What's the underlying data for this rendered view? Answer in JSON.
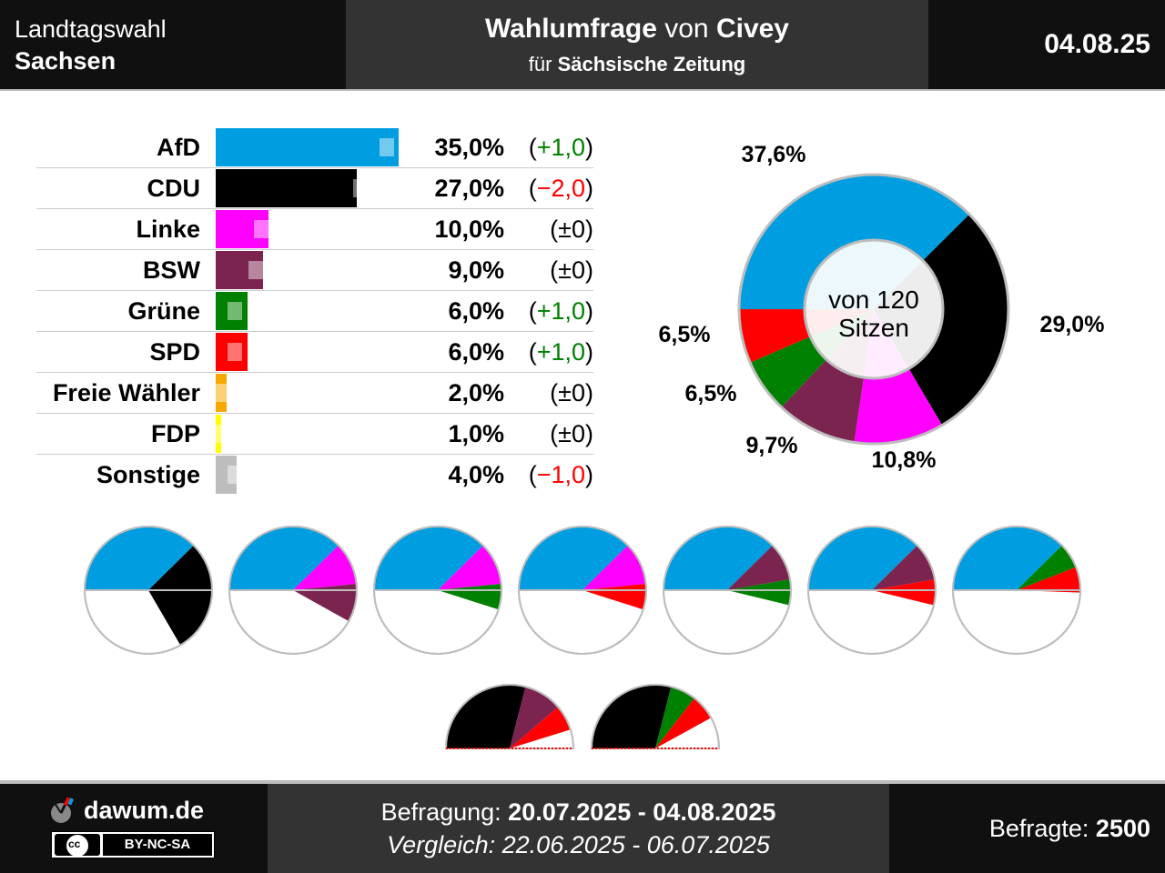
{
  "header": {
    "election": "Landtagswahl",
    "state": "Sachsen",
    "title_bold_1": "Wahlumfrage",
    "title_regular": " von ",
    "title_bold_2": "Civey",
    "subtitle_regular": "für ",
    "subtitle_bold": "Sächsische Zeitung",
    "date": "04.08.25"
  },
  "chart_data": [
    {
      "type": "bar",
      "categories": [
        "AfD",
        "CDU",
        "Linke",
        "BSW",
        "Grüne",
        "SPD",
        "Freie Wähler",
        "FDP",
        "Sonstige"
      ],
      "series": [
        {
          "name": "Umfrage",
          "values": [
            35.0,
            27.0,
            10.0,
            9.0,
            6.0,
            6.0,
            2.0,
            1.0,
            4.0
          ]
        },
        {
          "name": "Vergleich",
          "values": [
            34.0,
            29.0,
            10.0,
            9.0,
            5.0,
            5.0,
            2.0,
            1.0,
            5.0
          ]
        }
      ],
      "value_labels": [
        "35,0%",
        "27,0%",
        "10,0%",
        "9,0%",
        "6,0%",
        "6,0%",
        "2,0%",
        "1,0%",
        "4,0%"
      ],
      "change_labels": [
        "(+1,0)",
        "(−2,0)",
        "(±0)",
        "(±0)",
        "(+1,0)",
        "(+1,0)",
        "(±0)",
        "(±0)",
        "(−1,0)"
      ],
      "change_colors": [
        "#008000",
        "#ff0000",
        "#000000",
        "#000000",
        "#008000",
        "#008000",
        "#000000",
        "#000000",
        "#ff0000"
      ],
      "colors": [
        "#009ee0",
        "#000000",
        "#ff00ff",
        "#7b2450",
        "#008000",
        "#ff0000",
        "#f7a800",
        "#ffff00",
        "#bdbdbd"
      ],
      "xlim": [
        0,
        36
      ]
    },
    {
      "type": "pie",
      "categories": [
        "AfD",
        "CDU",
        "Linke",
        "BSW",
        "Grüne",
        "SPD"
      ],
      "values": [
        37.6,
        29.0,
        10.8,
        9.7,
        6.5,
        6.5
      ],
      "labels": [
        "37,6%",
        "29,0%",
        "10,8%",
        "9,7%",
        "6,5%",
        "6,5%"
      ],
      "colors": [
        "#009ee0",
        "#000000",
        "#ff00ff",
        "#7b2450",
        "#008000",
        "#ff0000"
      ],
      "center_line1": "von 120",
      "center_line2": "Sitzen"
    },
    {
      "type": "pie",
      "description_free": true,
      "coalitions": [
        {
          "members": [
            "AfD",
            "CDU"
          ],
          "values": [
            37.6,
            29.0
          ]
        },
        {
          "members": [
            "AfD",
            "Linke",
            "BSW"
          ],
          "values": [
            37.6,
            10.8,
            9.7
          ]
        },
        {
          "members": [
            "AfD",
            "Linke",
            "Grüne"
          ],
          "values": [
            37.6,
            10.8,
            6.5
          ]
        },
        {
          "members": [
            "AfD",
            "Linke",
            "SPD"
          ],
          "values": [
            37.6,
            10.8,
            6.5
          ]
        },
        {
          "members": [
            "AfD",
            "BSW",
            "Grüne"
          ],
          "values": [
            37.6,
            9.7,
            6.5
          ]
        },
        {
          "members": [
            "AfD",
            "BSW",
            "SPD"
          ],
          "values": [
            37.6,
            9.7,
            6.5
          ]
        },
        {
          "members": [
            "AfD",
            "Grüne",
            "SPD"
          ],
          "values": [
            37.6,
            6.5,
            6.5
          ]
        },
        {
          "members": [
            "CDU",
            "BSW",
            "SPD"
          ],
          "values": [
            29.0,
            9.7,
            6.5
          ]
        },
        {
          "members": [
            "CDU",
            "Grüne",
            "SPD"
          ],
          "values": [
            29.0,
            6.5,
            6.5
          ]
        }
      ]
    }
  ],
  "footer": {
    "logo_text": "dawum.de",
    "license": "BY-NC-SA",
    "license_icon": "cc",
    "survey_label": "Befragung: ",
    "survey_period": "20.07.2025 - 04.08.2025",
    "compare_label": "Vergleich: ",
    "compare_period": "22.06.2025 - 06.07.2025",
    "respondents_label": "Befragte: ",
    "respondents": "2500"
  }
}
